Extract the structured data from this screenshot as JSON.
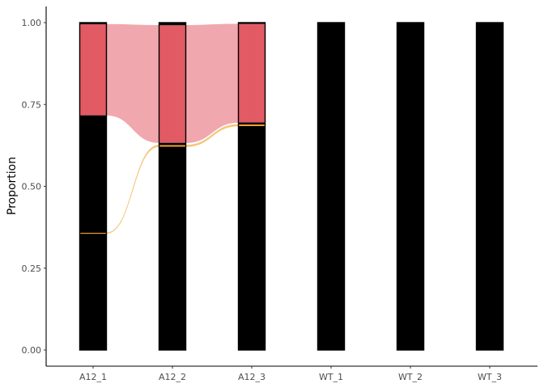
{
  "chart_data": {
    "type": "alluvial",
    "ylabel": "Proportion",
    "xlabel": "",
    "ylim": [
      0,
      1
    ],
    "yticks": [
      "0.00",
      "0.25",
      "0.50",
      "0.75",
      "1.00"
    ],
    "categories": [
      "A12_1",
      "A12_2",
      "A12_3",
      "WT_1",
      "WT_2",
      "WT_3"
    ],
    "grid": false,
    "legend": "none",
    "colors": {
      "red": "#e15a64",
      "red_flow": "#f0a8ae",
      "orange": "#f0a030",
      "orange_flow": "#f5c67a",
      "black": "#000000"
    },
    "stacks": [
      {
        "category": "A12_1",
        "segments": [
          {
            "color": "black",
            "y0": 0.0,
            "y1": 0.356
          },
          {
            "color": "orange",
            "y0": 0.356,
            "y1": 0.358
          },
          {
            "color": "black",
            "y0": 0.358,
            "y1": 0.717
          },
          {
            "color": "red",
            "y0": 0.717,
            "y1": 0.995
          },
          {
            "color": "black",
            "y0": 0.995,
            "y1": 1.0
          }
        ]
      },
      {
        "category": "A12_2",
        "segments": [
          {
            "color": "black",
            "y0": 0.0,
            "y1": 0.621
          },
          {
            "color": "orange",
            "y0": 0.621,
            "y1": 0.626
          },
          {
            "color": "black",
            "y0": 0.626,
            "y1": 0.633
          },
          {
            "color": "red",
            "y0": 0.633,
            "y1": 0.992
          },
          {
            "color": "black",
            "y0": 0.992,
            "y1": 1.0
          }
        ]
      },
      {
        "category": "A12_3",
        "segments": [
          {
            "color": "black",
            "y0": 0.0,
            "y1": 0.684
          },
          {
            "color": "orange",
            "y0": 0.684,
            "y1": 0.689
          },
          {
            "color": "black",
            "y0": 0.689,
            "y1": 0.695
          },
          {
            "color": "red",
            "y0": 0.695,
            "y1": 0.996
          },
          {
            "color": "black",
            "y0": 0.996,
            "y1": 1.0
          }
        ]
      },
      {
        "category": "WT_1",
        "segments": [
          {
            "color": "black",
            "y0": 0.0,
            "y1": 1.0
          }
        ]
      },
      {
        "category": "WT_2",
        "segments": [
          {
            "color": "black",
            "y0": 0.0,
            "y1": 1.0
          }
        ]
      },
      {
        "category": "WT_3",
        "segments": [
          {
            "color": "black",
            "y0": 0.0,
            "y1": 1.0
          }
        ]
      }
    ],
    "flows": [
      {
        "from": 0,
        "to": 1,
        "color": "red_flow",
        "from_y": [
          0.717,
          0.995
        ],
        "to_y": [
          0.633,
          0.992
        ]
      },
      {
        "from": 1,
        "to": 2,
        "color": "red_flow",
        "from_y": [
          0.633,
          0.992
        ],
        "to_y": [
          0.695,
          0.996
        ]
      },
      {
        "from": 0,
        "to": 1,
        "color": "orange_flow",
        "from_y": [
          0.356,
          0.358
        ],
        "to_y": [
          0.621,
          0.626
        ]
      },
      {
        "from": 1,
        "to": 2,
        "color": "orange_flow",
        "from_y": [
          0.621,
          0.626
        ],
        "to_y": [
          0.684,
          0.689
        ]
      }
    ]
  }
}
